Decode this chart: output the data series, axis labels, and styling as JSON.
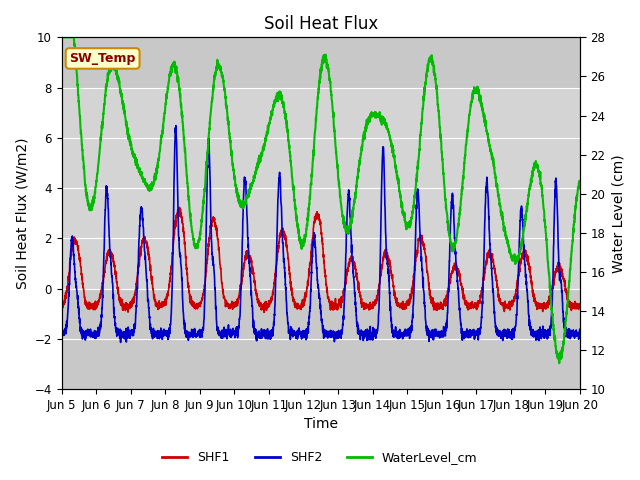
{
  "title": "Soil Heat Flux",
  "xlabel": "Time",
  "ylabel_left": "Soil Heat Flux (W/m2)",
  "ylabel_right": "Water Level (cm)",
  "ylim_left": [
    -4,
    10
  ],
  "ylim_right": [
    10,
    28
  ],
  "xlim": [
    0,
    15
  ],
  "x_tick_labels": [
    "Jun 5",
    "Jun 6",
    "Jun 7",
    "Jun 8",
    "Jun 9",
    "Jun 10",
    "Jun 11",
    "Jun 12",
    "Jun 13",
    "Jun 14",
    "Jun 15",
    "Jun 16",
    "Jun 17",
    "Jun 18",
    "Jun 19",
    "Jun 20"
  ],
  "x_tick_positions": [
    0,
    1,
    2,
    3,
    4,
    5,
    6,
    7,
    8,
    9,
    10,
    11,
    12,
    13,
    14,
    15
  ],
  "yticks_left": [
    -4,
    -2,
    0,
    2,
    4,
    6,
    8,
    10
  ],
  "yticks_right": [
    10,
    12,
    14,
    16,
    18,
    20,
    22,
    24,
    26,
    28
  ],
  "colors": {
    "SHF1": "#cc0000",
    "SHF2": "#0000cc",
    "WaterLevel_cm": "#00bb00"
  },
  "linewidths": {
    "SHF1": 1.2,
    "SHF2": 1.2,
    "WaterLevel_cm": 1.5
  },
  "annotation_text": "SW_Temp",
  "annotation_bbox": {
    "boxstyle": "round,pad=0.3",
    "facecolor": "#ffffcc",
    "edgecolor": "#cc8800",
    "linewidth": 1.5
  },
  "annotation_color": "#880000",
  "annotation_fontsize": 9,
  "annotation_fontweight": "bold",
  "shaded_ymin": 0,
  "shaded_ymax": 8,
  "shaded_color": "#d8d8d8",
  "shaded_alpha": 0.8,
  "plot_bg_color": "#c8c8c8",
  "title_fontsize": 12,
  "axis_label_fontsize": 10,
  "tick_label_fontsize": 8.5,
  "legend_fontsize": 9
}
